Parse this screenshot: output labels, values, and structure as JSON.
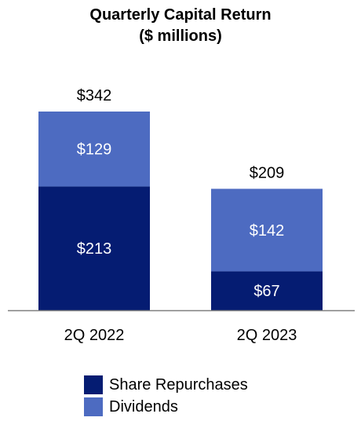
{
  "chart_data": {
    "type": "bar",
    "stacked": true,
    "title": "Quarterly Capital Return",
    "subtitle": "($ millions)",
    "categories": [
      "2Q 2022",
      "2Q 2023"
    ],
    "series": [
      {
        "name": "Share Repurchases",
        "color": "#051c72",
        "values": [
          213,
          67
        ],
        "labels": [
          "$213",
          "$67"
        ]
      },
      {
        "name": "Dividends",
        "color": "#4d6bc1",
        "values": [
          129,
          142
        ],
        "labels": [
          "$129",
          "$142"
        ]
      }
    ],
    "totals": [
      342,
      209
    ],
    "total_labels": [
      "$342",
      "$209"
    ],
    "ylim": [
      0,
      342
    ],
    "grid": false,
    "legend_position": "bottom-center"
  }
}
